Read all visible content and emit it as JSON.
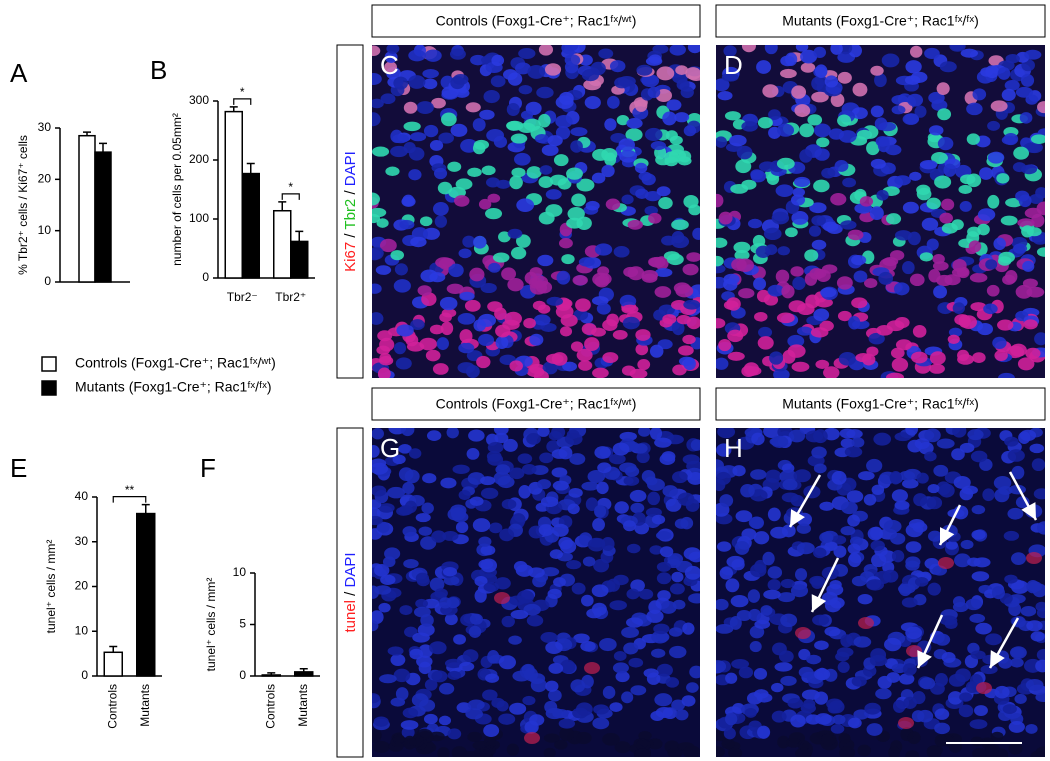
{
  "chart_data": [
    {
      "type": "bar",
      "label": "A",
      "y_label": "% Tbr2⁺ cells / Ki67⁺ cells",
      "series": [
        {
          "name": "Controls (Foxg1-Cre⁺; Rac1ᶠˣ/ʷᵗ)",
          "color": "#ffffff",
          "values": [
            28.5
          ],
          "errors": [
            0.7
          ]
        },
        {
          "name": "Mutants (Foxg1-Cre⁺; Rac1ᶠˣ/ᶠˣ)",
          "color": "#000000",
          "values": [
            25.3
          ],
          "errors": [
            1.7
          ]
        }
      ],
      "ylim": [
        0,
        30
      ],
      "yticks": [
        0,
        10,
        20,
        30
      ]
    },
    {
      "type": "bar",
      "label": "B",
      "y_label": "number of cells per 0.05mm²",
      "categories": [
        "Tbr2⁻",
        "Tbr2⁺"
      ],
      "series": [
        {
          "color": "#ffffff",
          "values": [
            282,
            114
          ],
          "errors": [
            8,
            15
          ]
        },
        {
          "color": "#000000",
          "values": [
            177,
            62
          ],
          "errors": [
            17,
            17
          ]
        }
      ],
      "ylim": [
        0,
        300
      ],
      "yticks": [
        0,
        100,
        200,
        300
      ],
      "annotations": [
        "*",
        "*"
      ]
    },
    {
      "type": "bar",
      "label": "E",
      "y_label": "tunel⁺ cells / mm²",
      "categories": [
        "Controls",
        "Mutants"
      ],
      "values": [
        5.3,
        36.3
      ],
      "errors": [
        1.3,
        2
      ],
      "colors": [
        "#ffffff",
        "#000000"
      ],
      "ylim": [
        0,
        40
      ],
      "yticks": [
        0,
        10,
        20,
        30,
        40
      ],
      "annotations": [
        "**"
      ]
    },
    {
      "type": "bar",
      "label": "F",
      "y_label": "tunel⁺ cells / mm²",
      "categories": [
        "Controls",
        "Mutants"
      ],
      "values": [
        0.1,
        0.4
      ],
      "errors": [
        0.2,
        0.3
      ],
      "colors": [
        "#ffffff",
        "#000000"
      ],
      "ylim": [
        0,
        10
      ],
      "yticks": [
        0,
        5,
        10
      ]
    }
  ],
  "images": [
    {
      "label": "C",
      "header": "Controls (Foxg1-Cre⁺; Rac1ᶠˣ/ʷᵗ)"
    },
    {
      "label": "D",
      "header": "Mutants (Foxg1-Cre⁺; Rac1ᶠˣ/ᶠˣ)"
    },
    {
      "label": "G",
      "header": "Controls (Foxg1-Cre⁺; Rac1ᶠˣ/ʷᵗ)"
    },
    {
      "label": "H",
      "header": "Mutants (Foxg1-Cre⁺; Rac1ᶠˣ/ᶠˣ)"
    }
  ],
  "stain_labels": [
    [
      "Ki67",
      " / ",
      "Tbr2",
      " / ",
      "DAPI"
    ],
    [
      "tunel",
      " / ",
      "DAPI"
    ]
  ]
}
